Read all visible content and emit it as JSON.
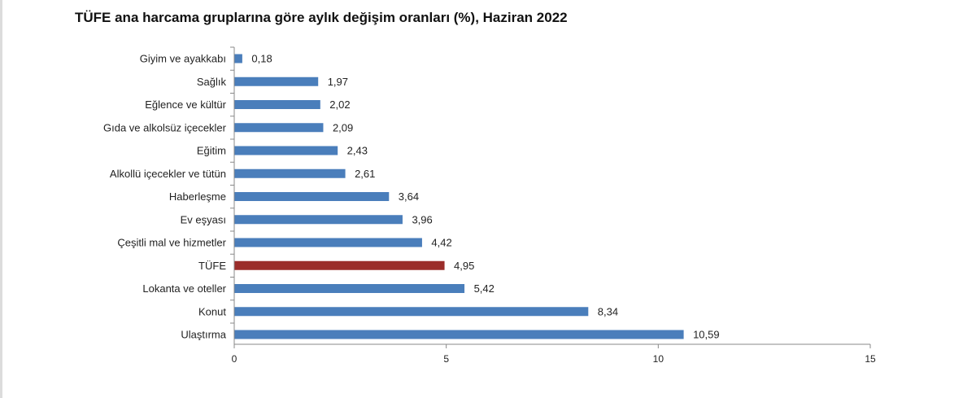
{
  "chart_data": {
    "type": "bar",
    "orientation": "horizontal",
    "title": "TÜFE ana harcama gruplarına göre aylık değişim oranları (%), Haziran 2022",
    "categories": [
      "Giyim ve ayakkabı",
      "Sağlık",
      "Eğlence ve kültür",
      "Gıda ve alkolsüz içecekler",
      "Eğitim",
      "Alkollü içecekler ve tütün",
      "Haberleşme",
      "Ev eşyası",
      "Çeşitli mal ve hizmetler",
      "TÜFE",
      "Lokanta ve oteller",
      "Konut",
      "Ulaştırma"
    ],
    "values": [
      0.18,
      1.97,
      2.02,
      2.09,
      2.43,
      2.61,
      3.64,
      3.96,
      4.42,
      4.95,
      5.42,
      8.34,
      10.59
    ],
    "value_labels": [
      "0,18",
      "1,97",
      "2,02",
      "2,09",
      "2,43",
      "2,61",
      "3,64",
      "3,96",
      "4,42",
      "4,95",
      "5,42",
      "8,34",
      "10,59"
    ],
    "highlight_category": "TÜFE",
    "colors": {
      "bar": "#4a7ebb",
      "highlight": "#9b2d2a",
      "axis": "#888888"
    },
    "xlim": [
      0,
      15
    ],
    "xticks": [
      0,
      5,
      10,
      15
    ],
    "xtick_labels": [
      "0",
      "5",
      "10",
      "15"
    ],
    "grid": false,
    "legend": "none"
  }
}
